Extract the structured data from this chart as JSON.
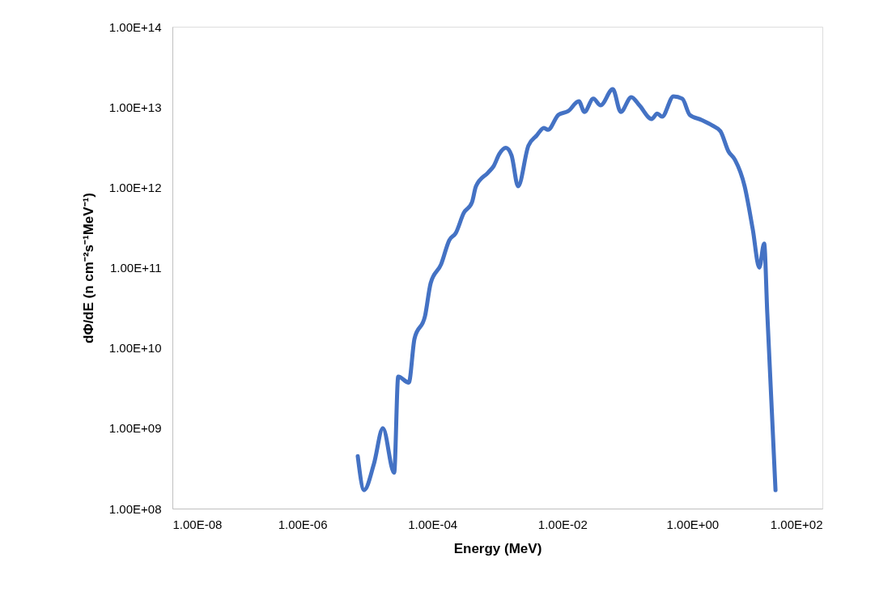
{
  "chart_data": {
    "type": "line",
    "xlabel": "Energy (MeV)",
    "ylabel": "dΦ/dE (n cm⁻²s⁻¹MeV⁻¹)",
    "log": "xy",
    "grid": false,
    "marker": "none",
    "line_style": "solid",
    "xlim": [
      1e-08,
      100
    ],
    "ylim": [
      100000000.0,
      100000000000000.0
    ],
    "xticks": [
      {
        "value": 1e-08,
        "label": "1.00E-08"
      },
      {
        "value": 1e-06,
        "label": "1.00E-06"
      },
      {
        "value": 0.0001,
        "label": "1.00E-04"
      },
      {
        "value": 0.01,
        "label": "1.00E-02"
      },
      {
        "value": 1,
        "label": "1.00E+00"
      },
      {
        "value": 100,
        "label": "1.00E+02"
      }
    ],
    "yticks": [
      {
        "value": 100000000.0,
        "label": "1.00E+08"
      },
      {
        "value": 1000000000.0,
        "label": "1.00E+09"
      },
      {
        "value": 10000000000.0,
        "label": "1.00E+10"
      },
      {
        "value": 100000000000.0,
        "label": "1.00E+11"
      },
      {
        "value": 1000000000000.0,
        "label": "1.00E+12"
      },
      {
        "value": 10000000000000.0,
        "label": "1.00E+13"
      },
      {
        "value": 100000000000000.0,
        "label": "1.00E+14"
      }
    ],
    "x": [
      7.1e-06,
      8.9e-06,
      1.26e-05,
      1.73e-05,
      2.58e-05,
      2.98e-05,
      4.33e-05,
      5.3e-05,
      7.7e-05,
      9.4e-05,
      0.000136,
      0.000182,
      0.000229,
      0.000304,
      0.000406,
      0.000468,
      0.00072,
      0.00088,
      0.00107,
      0.00135,
      0.00165,
      0.00208,
      0.003,
      0.004,
      0.0052,
      0.006,
      0.0087,
      0.0123,
      0.0179,
      0.0218,
      0.0299,
      0.0387,
      0.0596,
      0.079,
      0.115,
      0.153,
      0.236,
      0.288,
      0.342,
      0.512,
      0.7,
      0.91,
      1.39,
      2.02,
      2.7,
      3.59,
      4.52,
      6.37,
      8.49,
      10.7,
      12.7,
      14.2,
      19.0
    ],
    "series": [
      {
        "color": "#4472c4",
        "values": [
          450000000.0,
          170000000.0,
          360000000.0,
          1000000000.0,
          280000000.0,
          4400000000.0,
          3700000000.0,
          13000000000.0,
          25000000000.0,
          64000000000.0,
          110000000000.0,
          220000000000.0,
          270000000000.0,
          480000000000.0,
          650000000000.0,
          1030000000000.0,
          1530000000000.0,
          1850000000000.0,
          2600000000000.0,
          3100000000000.0,
          2500000000000.0,
          1030000000000.0,
          3300000000000.0,
          4400000000000.0,
          5500000000000.0,
          5200000000000.0,
          8000000000000.0,
          8900000000000.0,
          11800000000000.0,
          8700000000000.0,
          12700000000000.0,
          10500000000000.0,
          16700000000000.0,
          8700000000000.0,
          13300000000000.0,
          10500000000000.0,
          7100000000000.0,
          8300000000000.0,
          7600000000000.0,
          13600000000000.0,
          12700000000000.0,
          8000000000000.0,
          6900000000000.0,
          5900000000000.0,
          5000000000000.0,
          2800000000000.0,
          2200000000000.0,
          1030000000000.0,
          300000000000.0,
          100000000000.0,
          200000000000.0,
          27000000000.0,
          170000000.0
        ]
      }
    ]
  }
}
